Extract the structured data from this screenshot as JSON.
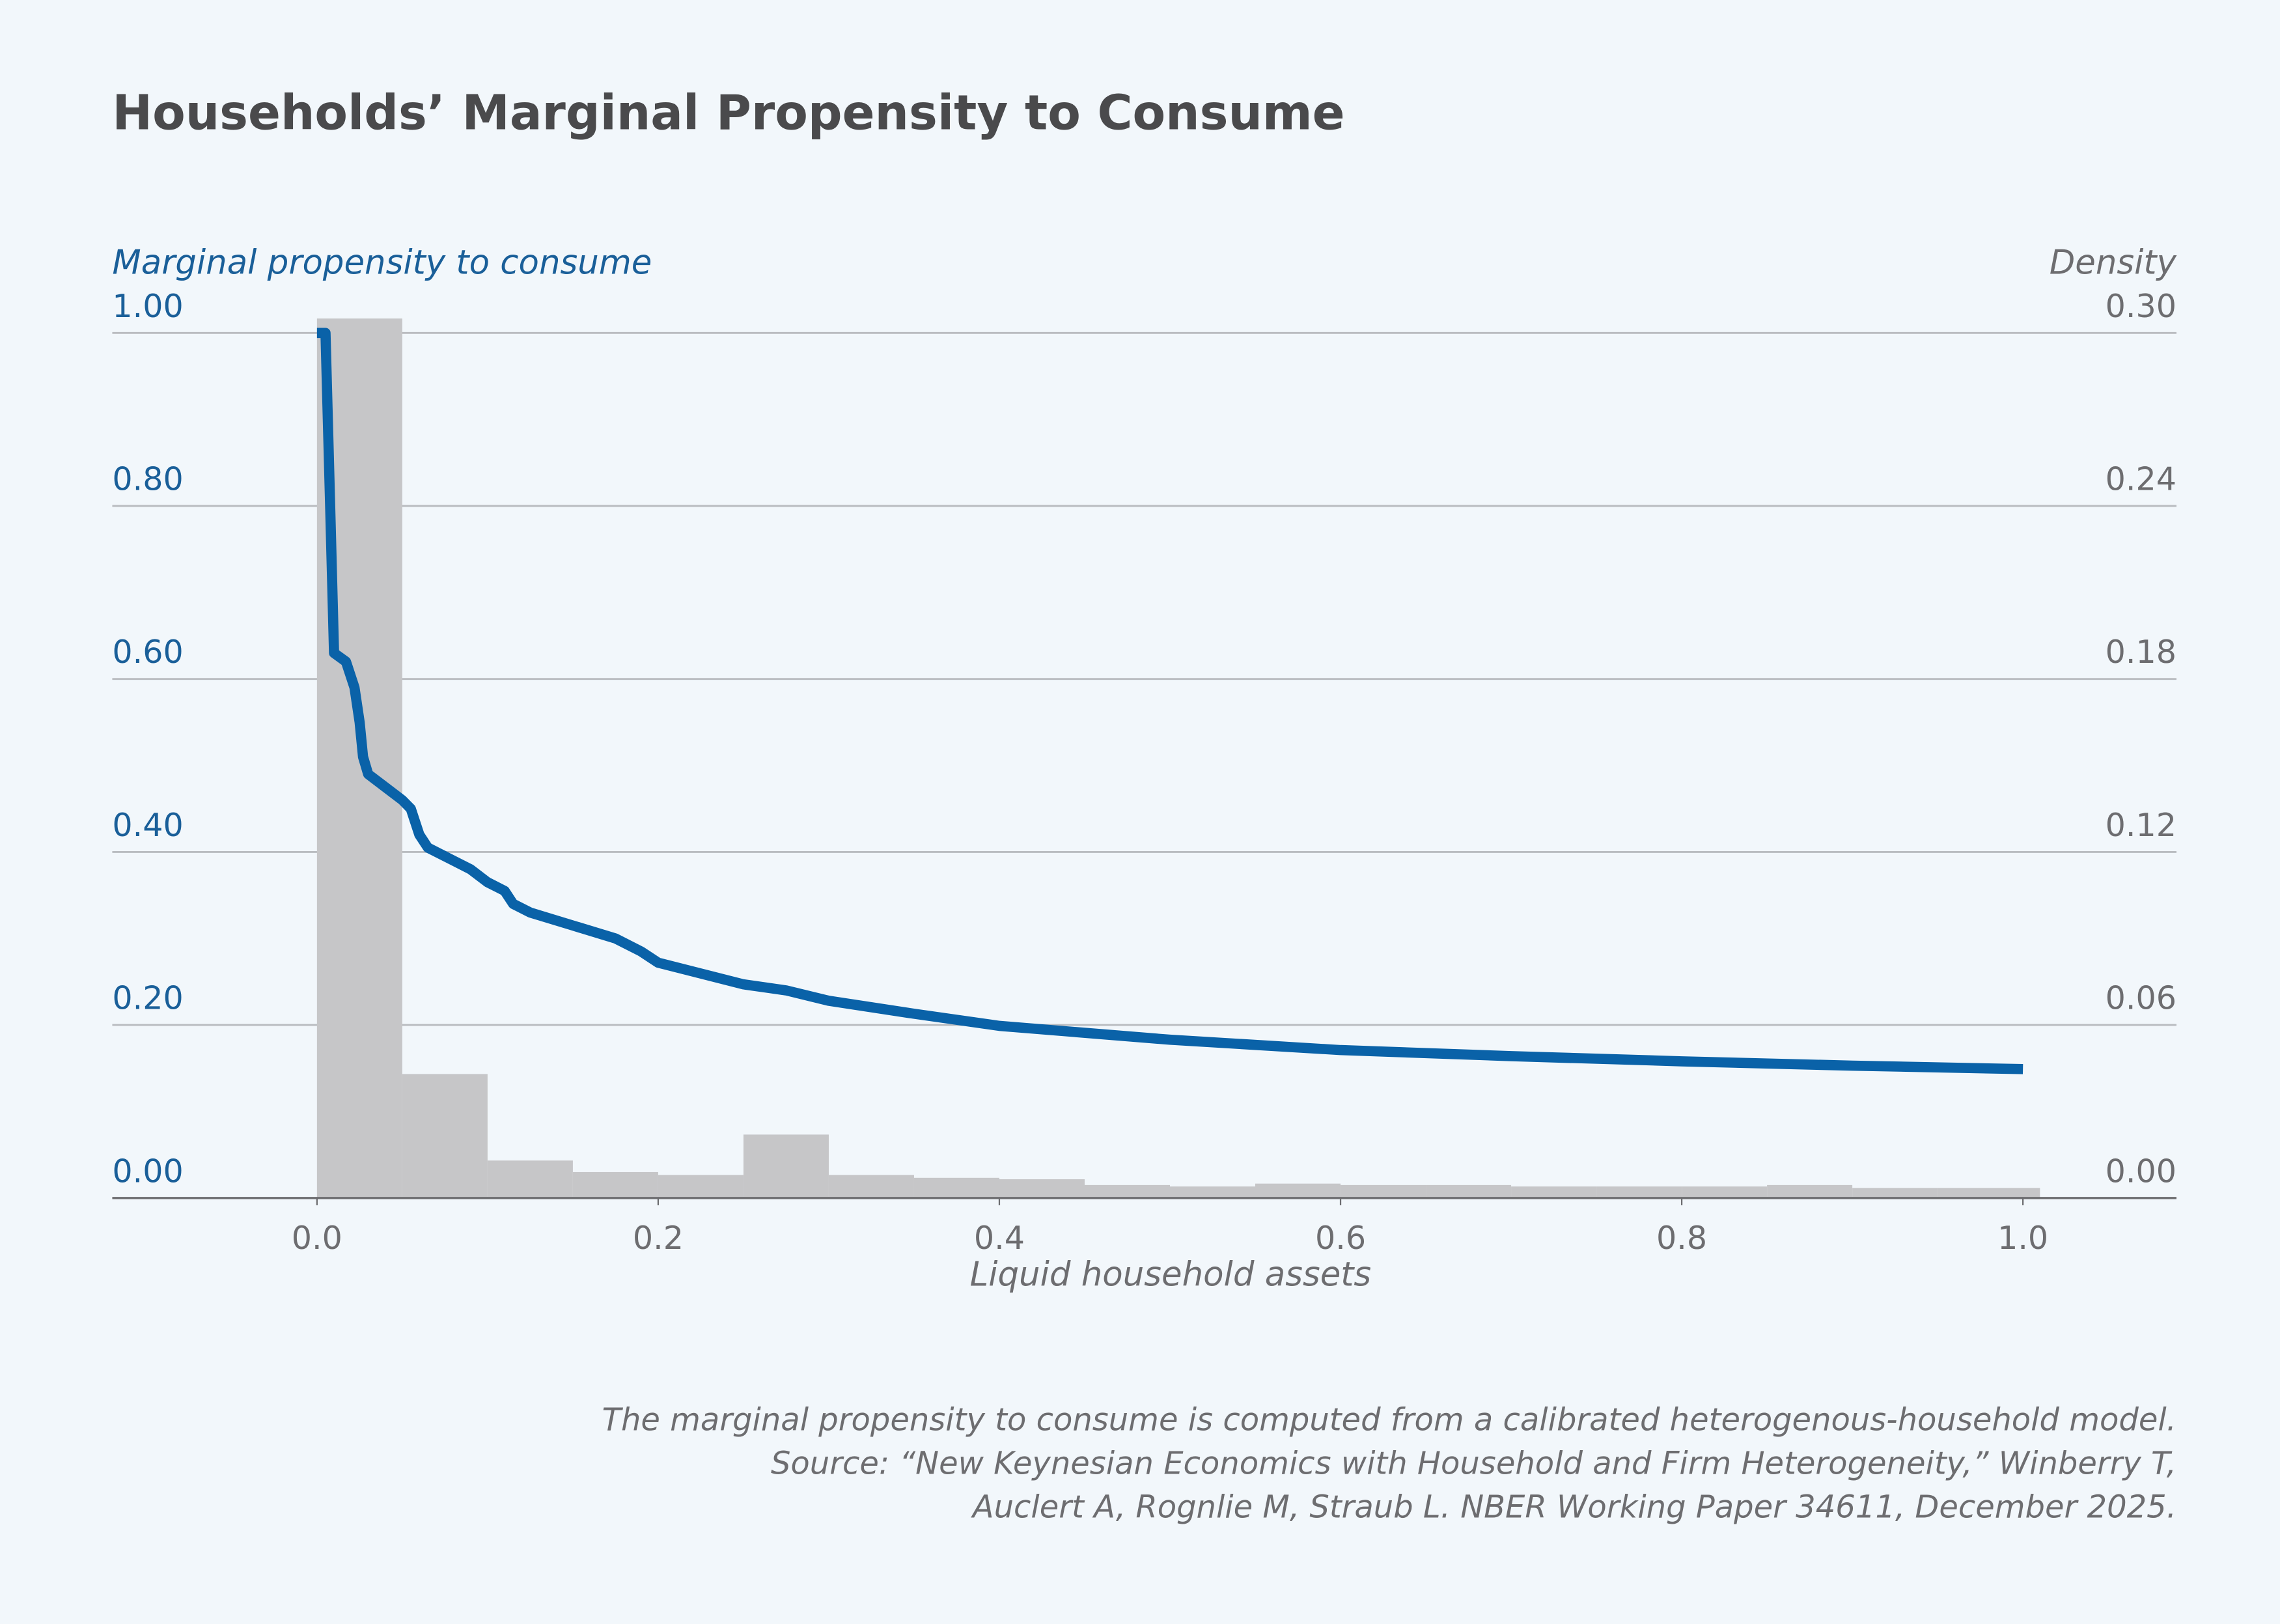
{
  "chart_data": {
    "type": "histogram",
    "title": "Households’ Marginal Propensity to Consume",
    "y_label": "Marginal propensity to consume",
    "y2_label": "Density",
    "x_label": "Liquid household assets",
    "xlim": [
      -0.12,
      1.09
    ],
    "xticks": [
      {
        "value": 0,
        "label": "0.0"
      },
      0.2,
      0.4,
      0.6,
      0.8,
      {
        "value": 1,
        "label": "1.0"
      }
    ],
    "ylim": [
      0,
      1
    ],
    "yticks": [
      {
        "value": 0,
        "label": "0.00"
      },
      {
        "value": 0.2,
        "label": "0.20"
      },
      {
        "value": 0.4,
        "label": "0.40"
      },
      {
        "value": 0.6,
        "label": "0.60"
      },
      {
        "value": 0.8,
        "label": "0.80"
      },
      {
        "value": 1,
        "label": "1.00"
      }
    ],
    "y2lim": [
      0,
      0.3
    ],
    "y2ticks": [
      {
        "value": 0,
        "label": "0.00"
      },
      {
        "value": 0.06,
        "label": "0.06"
      },
      {
        "value": 0.12,
        "label": "0.12"
      },
      {
        "value": 0.18,
        "label": "0.18"
      },
      {
        "value": 0.24,
        "label": "0.24"
      },
      {
        "value": 0.3,
        "label": "0.30"
      }
    ],
    "grid": true,
    "histogram": {
      "axis": "y2",
      "color": "#c6c6c8",
      "bins": [
        0,
        0.05,
        0.1,
        0.15,
        0.2,
        0.25,
        0.3,
        0.35,
        0.4,
        0.45,
        0.5,
        0.55,
        0.6,
        0.65,
        0.7,
        0.75,
        0.8,
        0.85,
        0.9,
        0.95,
        1.01
      ],
      "counts": [
        0.305,
        0.043,
        0.013,
        0.009,
        0.008,
        0.022,
        0.008,
        0.007,
        0.0065,
        0.0045,
        0.004,
        0.005,
        0.0045,
        0.0045,
        0.004,
        0.004,
        0.004,
        0.0045,
        0.0035,
        0.0035
      ]
    },
    "line": {
      "color": "#0a62a8",
      "x": [
        0,
        0.005,
        0.008,
        0.01,
        0.017,
        0.022,
        0.025,
        0.027,
        0.03,
        0.04,
        0.05,
        0.055,
        0.06,
        0.065,
        0.08,
        0.09,
        0.1,
        0.11,
        0.115,
        0.125,
        0.15,
        0.175,
        0.19,
        0.2,
        0.25,
        0.275,
        0.3,
        0.35,
        0.4,
        0.5,
        0.6,
        0.7,
        0.8,
        0.9,
        1.0
      ],
      "values": [
        1.0,
        1.0,
        0.78,
        0.63,
        0.62,
        0.59,
        0.55,
        0.51,
        0.49,
        0.475,
        0.46,
        0.45,
        0.42,
        0.405,
        0.39,
        0.38,
        0.365,
        0.355,
        0.34,
        0.33,
        0.315,
        0.3,
        0.285,
        0.272,
        0.247,
        0.24,
        0.228,
        0.213,
        0.199,
        0.183,
        0.171,
        0.164,
        0.158,
        0.153,
        0.149
      ]
    },
    "notes": [
      "The marginal propensity to consume is computed from a calibrated heterogenous-household model.",
      "Source: “New Keynesian Economics with Household and Firm Heterogeneity,” Winberry T,",
      "Auclert A, Rognlie M, Straub L. NBER Working Paper 34611, December 2025."
    ]
  }
}
